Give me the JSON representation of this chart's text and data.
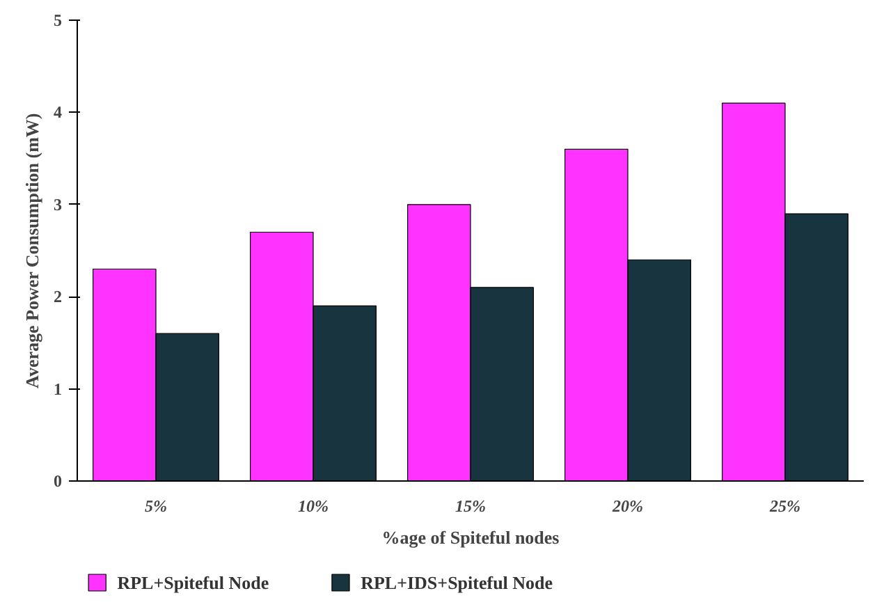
{
  "chart_data": {
    "type": "bar",
    "xlabel": "%age of Spiteful nodes",
    "ylabel": "Average Power Consumption (mW)",
    "categories": [
      "5%",
      "10%",
      "15%",
      "20%",
      "25%"
    ],
    "series": [
      {
        "name": "RPL+Spiteful Node",
        "color": "#ff33ff",
        "values": [
          2.3,
          2.7,
          3.0,
          3.6,
          4.1
        ]
      },
      {
        "name": "RPL+IDS+Spiteful Node",
        "color": "#17343f",
        "values": [
          1.6,
          1.9,
          2.1,
          2.4,
          2.9
        ]
      }
    ],
    "ylim": [
      0,
      5
    ],
    "yticks": [
      0,
      1,
      2,
      3,
      4,
      5
    ],
    "grid": false,
    "legend": "bottom"
  }
}
